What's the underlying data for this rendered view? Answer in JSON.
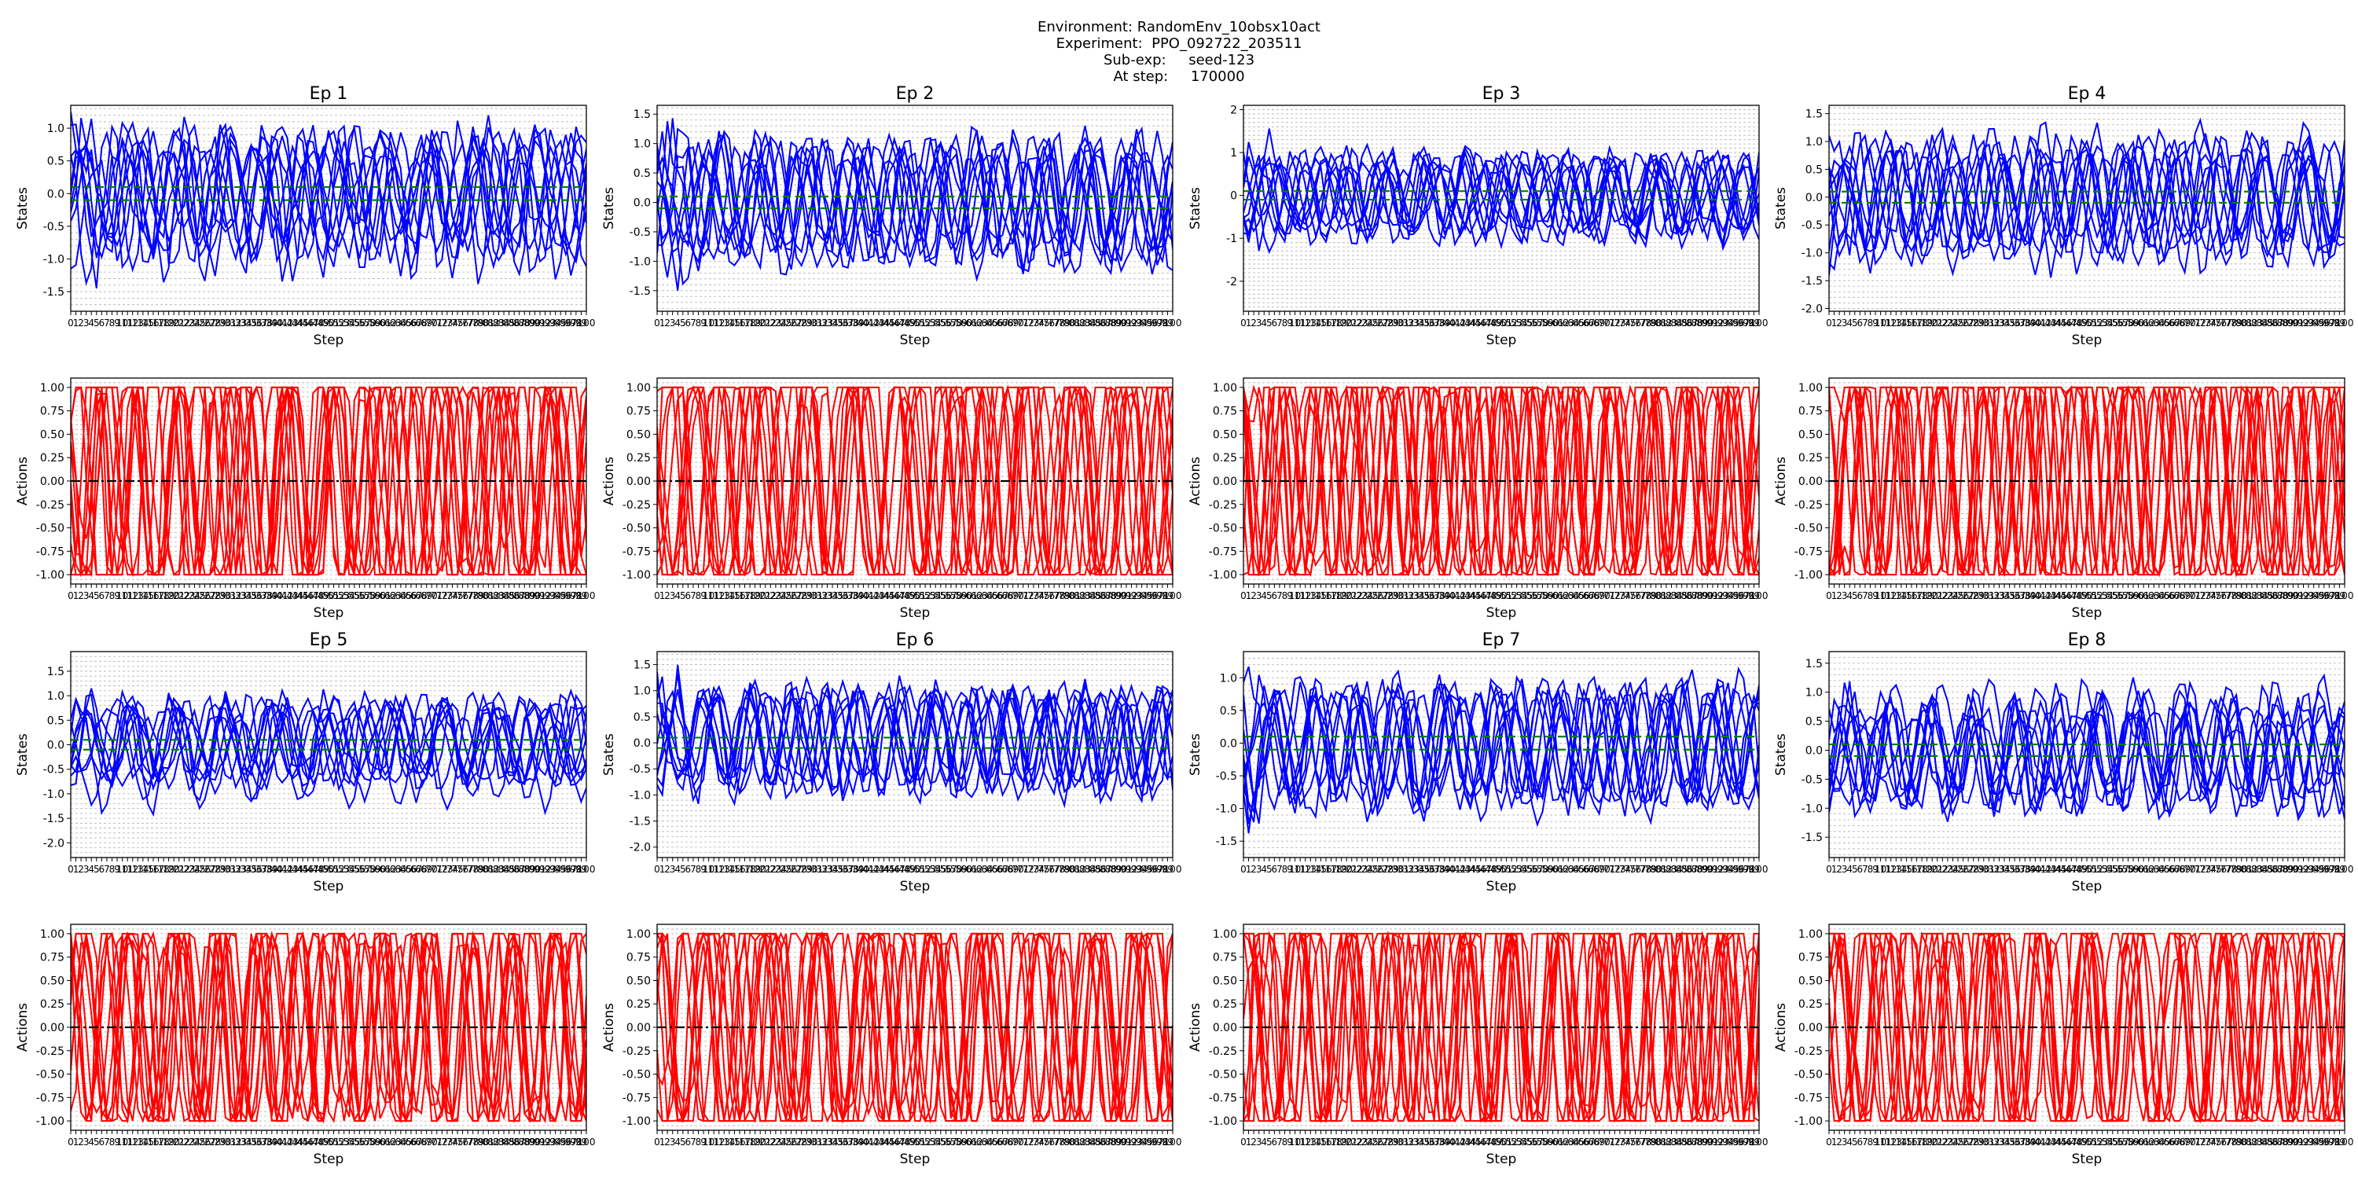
{
  "header": {
    "line1": "Environment: RandomEnv_10obsx10act",
    "line2": "Experiment:  PPO_092722_203511",
    "line3": "Sub-exp:     seed-123",
    "line4": "At step:     170000"
  },
  "colors": {
    "states": "#0000ff",
    "actions": "#ff0000",
    "threshold": "#008000",
    "zero_line": "#000000",
    "grid": "#b0b0b0"
  },
  "chart_data": [
    {
      "type": "line",
      "title": "Ep 1",
      "xlabel": "Step",
      "ylabel": "States",
      "xlim": [
        0,
        100
      ],
      "ylim": [
        -1.8,
        1.35
      ],
      "yticks": [
        -1.5,
        -1.0,
        -0.5,
        0.0,
        0.5,
        1.0
      ],
      "n_series": 10,
      "amplitude": 1.05,
      "threshold": [
        -0.1,
        0.1
      ],
      "grid": true,
      "seed": 11
    },
    {
      "type": "line",
      "title": "Ep 2",
      "xlabel": "Step",
      "ylabel": "States",
      "xlim": [
        0,
        100
      ],
      "ylim": [
        -1.85,
        1.65
      ],
      "yticks": [
        -1.5,
        -1.0,
        -0.5,
        0.0,
        0.5,
        1.0,
        1.5
      ],
      "n_series": 10,
      "amplitude": 1.1,
      "threshold": [
        -0.1,
        0.1
      ],
      "grid": true,
      "seed": 12
    },
    {
      "type": "line",
      "title": "Ep 3",
      "xlabel": "Step",
      "ylabel": "States",
      "xlim": [
        0,
        100
      ],
      "ylim": [
        -2.7,
        2.1
      ],
      "yticks": [
        -2,
        -1,
        0,
        1,
        2
      ],
      "n_series": 10,
      "amplitude": 1.0,
      "threshold": [
        -0.1,
        0.1
      ],
      "grid": true,
      "seed": 13
    },
    {
      "type": "line",
      "title": "Ep 4",
      "xlabel": "Step",
      "ylabel": "States",
      "xlim": [
        0,
        100
      ],
      "ylim": [
        -2.05,
        1.65
      ],
      "yticks": [
        -2.0,
        -1.5,
        -1.0,
        -0.5,
        0.0,
        0.5,
        1.0,
        1.5
      ],
      "n_series": 10,
      "amplitude": 1.1,
      "threshold": [
        -0.1,
        0.1
      ],
      "grid": true,
      "seed": 14
    },
    {
      "type": "line",
      "title": "",
      "xlabel": "Step",
      "ylabel": "Actions",
      "xlim": [
        0,
        100
      ],
      "ylim": [
        -1.1,
        1.1
      ],
      "yticks": [
        -1.0,
        -0.75,
        -0.5,
        -0.25,
        0.0,
        0.25,
        0.5,
        0.75,
        1.0
      ],
      "n_series": 10,
      "amplitude": 1.6,
      "zero_line": true,
      "grid": true,
      "seed": 21
    },
    {
      "type": "line",
      "title": "",
      "xlabel": "Step",
      "ylabel": "Actions",
      "xlim": [
        0,
        100
      ],
      "ylim": [
        -1.1,
        1.1
      ],
      "yticks": [
        -1.0,
        -0.75,
        -0.5,
        -0.25,
        0.0,
        0.25,
        0.5,
        0.75,
        1.0
      ],
      "n_series": 10,
      "amplitude": 1.6,
      "zero_line": true,
      "grid": true,
      "seed": 22
    },
    {
      "type": "line",
      "title": "",
      "xlabel": "Step",
      "ylabel": "Actions",
      "xlim": [
        0,
        100
      ],
      "ylim": [
        -1.1,
        1.1
      ],
      "yticks": [
        -1.0,
        -0.75,
        -0.5,
        -0.25,
        0.0,
        0.25,
        0.5,
        0.75,
        1.0
      ],
      "n_series": 10,
      "amplitude": 1.6,
      "zero_line": true,
      "grid": true,
      "seed": 23
    },
    {
      "type": "line",
      "title": "",
      "xlabel": "Step",
      "ylabel": "Actions",
      "xlim": [
        0,
        100
      ],
      "ylim": [
        -1.1,
        1.1
      ],
      "yticks": [
        -1.0,
        -0.75,
        -0.5,
        -0.25,
        0.0,
        0.25,
        0.5,
        0.75,
        1.0
      ],
      "n_series": 10,
      "amplitude": 1.6,
      "zero_line": true,
      "grid": true,
      "seed": 24
    },
    {
      "type": "line",
      "title": "Ep 5",
      "xlabel": "Step",
      "ylabel": "States",
      "xlim": [
        0,
        100
      ],
      "ylim": [
        -2.3,
        1.9
      ],
      "yticks": [
        -2.0,
        -1.5,
        -1.0,
        -0.5,
        0.0,
        0.5,
        1.0,
        1.5
      ],
      "n_series": 10,
      "amplitude": 1.05,
      "threshold": [
        -0.1,
        0.1
      ],
      "grid": true,
      "seed": 15
    },
    {
      "type": "line",
      "title": "Ep 6",
      "xlabel": "Step",
      "ylabel": "States",
      "xlim": [
        0,
        100
      ],
      "ylim": [
        -2.2,
        1.75
      ],
      "yticks": [
        -2.0,
        -1.5,
        -1.0,
        -0.5,
        0.0,
        0.5,
        1.0,
        1.5
      ],
      "n_series": 10,
      "amplitude": 1.05,
      "threshold": [
        -0.1,
        0.1
      ],
      "grid": true,
      "seed": 16
    },
    {
      "type": "line",
      "title": "Ep 7",
      "xlabel": "Step",
      "ylabel": "States",
      "xlim": [
        0,
        100
      ],
      "ylim": [
        -1.75,
        1.4
      ],
      "yticks": [
        -1.5,
        -1.0,
        -0.5,
        0.0,
        0.5,
        1.0
      ],
      "n_series": 10,
      "amplitude": 1.0,
      "threshold": [
        -0.1,
        0.1
      ],
      "grid": true,
      "seed": 17
    },
    {
      "type": "line",
      "title": "Ep 8",
      "xlabel": "Step",
      "ylabel": "States",
      "xlim": [
        0,
        100
      ],
      "ylim": [
        -1.85,
        1.7
      ],
      "yticks": [
        -1.5,
        -1.0,
        -0.5,
        0.0,
        0.5,
        1.0,
        1.5
      ],
      "n_series": 10,
      "amplitude": 1.0,
      "threshold": [
        -0.1,
        0.1
      ],
      "grid": true,
      "seed": 18
    },
    {
      "type": "line",
      "title": "",
      "xlabel": "Step",
      "ylabel": "Actions",
      "xlim": [
        0,
        100
      ],
      "ylim": [
        -1.1,
        1.1
      ],
      "yticks": [
        -1.0,
        -0.75,
        -0.5,
        -0.25,
        0.0,
        0.25,
        0.5,
        0.75,
        1.0
      ],
      "n_series": 10,
      "amplitude": 1.6,
      "zero_line": true,
      "grid": true,
      "seed": 25
    },
    {
      "type": "line",
      "title": "",
      "xlabel": "Step",
      "ylabel": "Actions",
      "xlim": [
        0,
        100
      ],
      "ylim": [
        -1.1,
        1.1
      ],
      "yticks": [
        -1.0,
        -0.75,
        -0.5,
        -0.25,
        0.0,
        0.25,
        0.5,
        0.75,
        1.0
      ],
      "n_series": 10,
      "amplitude": 1.6,
      "zero_line": true,
      "grid": true,
      "seed": 26
    },
    {
      "type": "line",
      "title": "",
      "xlabel": "Step",
      "ylabel": "Actions",
      "xlim": [
        0,
        100
      ],
      "ylim": [
        -1.1,
        1.1
      ],
      "yticks": [
        -1.0,
        -0.75,
        -0.5,
        -0.25,
        0.0,
        0.25,
        0.5,
        0.75,
        1.0
      ],
      "n_series": 10,
      "amplitude": 1.6,
      "zero_line": true,
      "grid": true,
      "seed": 27
    },
    {
      "type": "line",
      "title": "",
      "xlabel": "Step",
      "ylabel": "Actions",
      "xlim": [
        0,
        100
      ],
      "ylim": [
        -1.1,
        1.1
      ],
      "yticks": [
        -1.0,
        -0.75,
        -0.5,
        -0.25,
        0.0,
        0.25,
        0.5,
        0.75,
        1.0
      ],
      "n_series": 10,
      "amplitude": 1.6,
      "zero_line": true,
      "grid": true,
      "seed": 28
    }
  ]
}
